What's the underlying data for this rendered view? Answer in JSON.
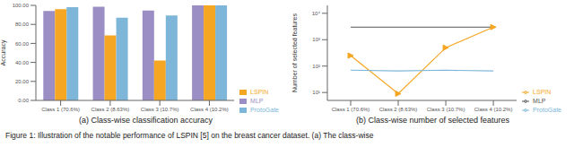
{
  "chart_data": [
    {
      "type": "bar",
      "subtitle": "(a) Class-wise classification accuracy",
      "categories": [
        "Class 1 (70.6%)",
        "Class 2 (8.63%)",
        "Class 3 (10.7%)",
        "Class 4 (10.2%)"
      ],
      "series": [
        {
          "name": "MLP",
          "color": "#9b8ec4",
          "values": [
            94.0,
            98.5,
            94.5,
            100.0
          ]
        },
        {
          "name": "LSPIN",
          "color": "#f5a623",
          "values": [
            96.0,
            68.5,
            42.0,
            100.0
          ]
        },
        {
          "name": "ProtoGate",
          "color": "#7db6d8",
          "values": [
            98.0,
            87.0,
            89.5,
            100.0
          ]
        }
      ],
      "ylabel": "Accuracy",
      "ylim": [
        0,
        100
      ],
      "yticks": [
        {
          "value": 0,
          "label": "0.00"
        },
        {
          "value": 20,
          "label": "20.00"
        },
        {
          "value": 40,
          "label": "40.00"
        },
        {
          "value": 60,
          "label": "60.00"
        },
        {
          "value": 80,
          "label": "80.00"
        },
        {
          "value": 100,
          "label": "100.00"
        }
      ],
      "legend": "lower right",
      "grid": false
    },
    {
      "type": "line",
      "subtitle": "(b) Class-wise number of selected features",
      "categories": [
        "Class 1 (70.6%)",
        "Class 2 (8.63%)",
        "Class 3 (10.7%)",
        "Class 4 (10.2%)"
      ],
      "series": [
        {
          "name": "MLP",
          "color": "#555555",
          "values": [
            3000,
            3000,
            3000,
            3000
          ]
        },
        {
          "name": "LSPIN",
          "color": "#f5a623",
          "marker": "triangle-right",
          "values": [
            250,
            9,
            500,
            3000
          ]
        },
        {
          "name": "ProtoGate",
          "color": "#7db6d8",
          "values": [
            70,
            65,
            70,
            65
          ]
        }
      ],
      "ylabel": "Number of selected features",
      "log": "y",
      "ylim": [
        5,
        20000
      ],
      "yticks": [
        {
          "value": 10,
          "label": "10¹"
        },
        {
          "value": 100,
          "label": "10²"
        },
        {
          "value": 1000,
          "label": "10³"
        },
        {
          "value": 10000,
          "label": "10⁴"
        }
      ],
      "legend": "lower right",
      "grid": false
    }
  ],
  "caption": "Figure 1: Illustration of the notable performance of LSPIN [5] on the breast cancer dataset. (a) The class-wise"
}
